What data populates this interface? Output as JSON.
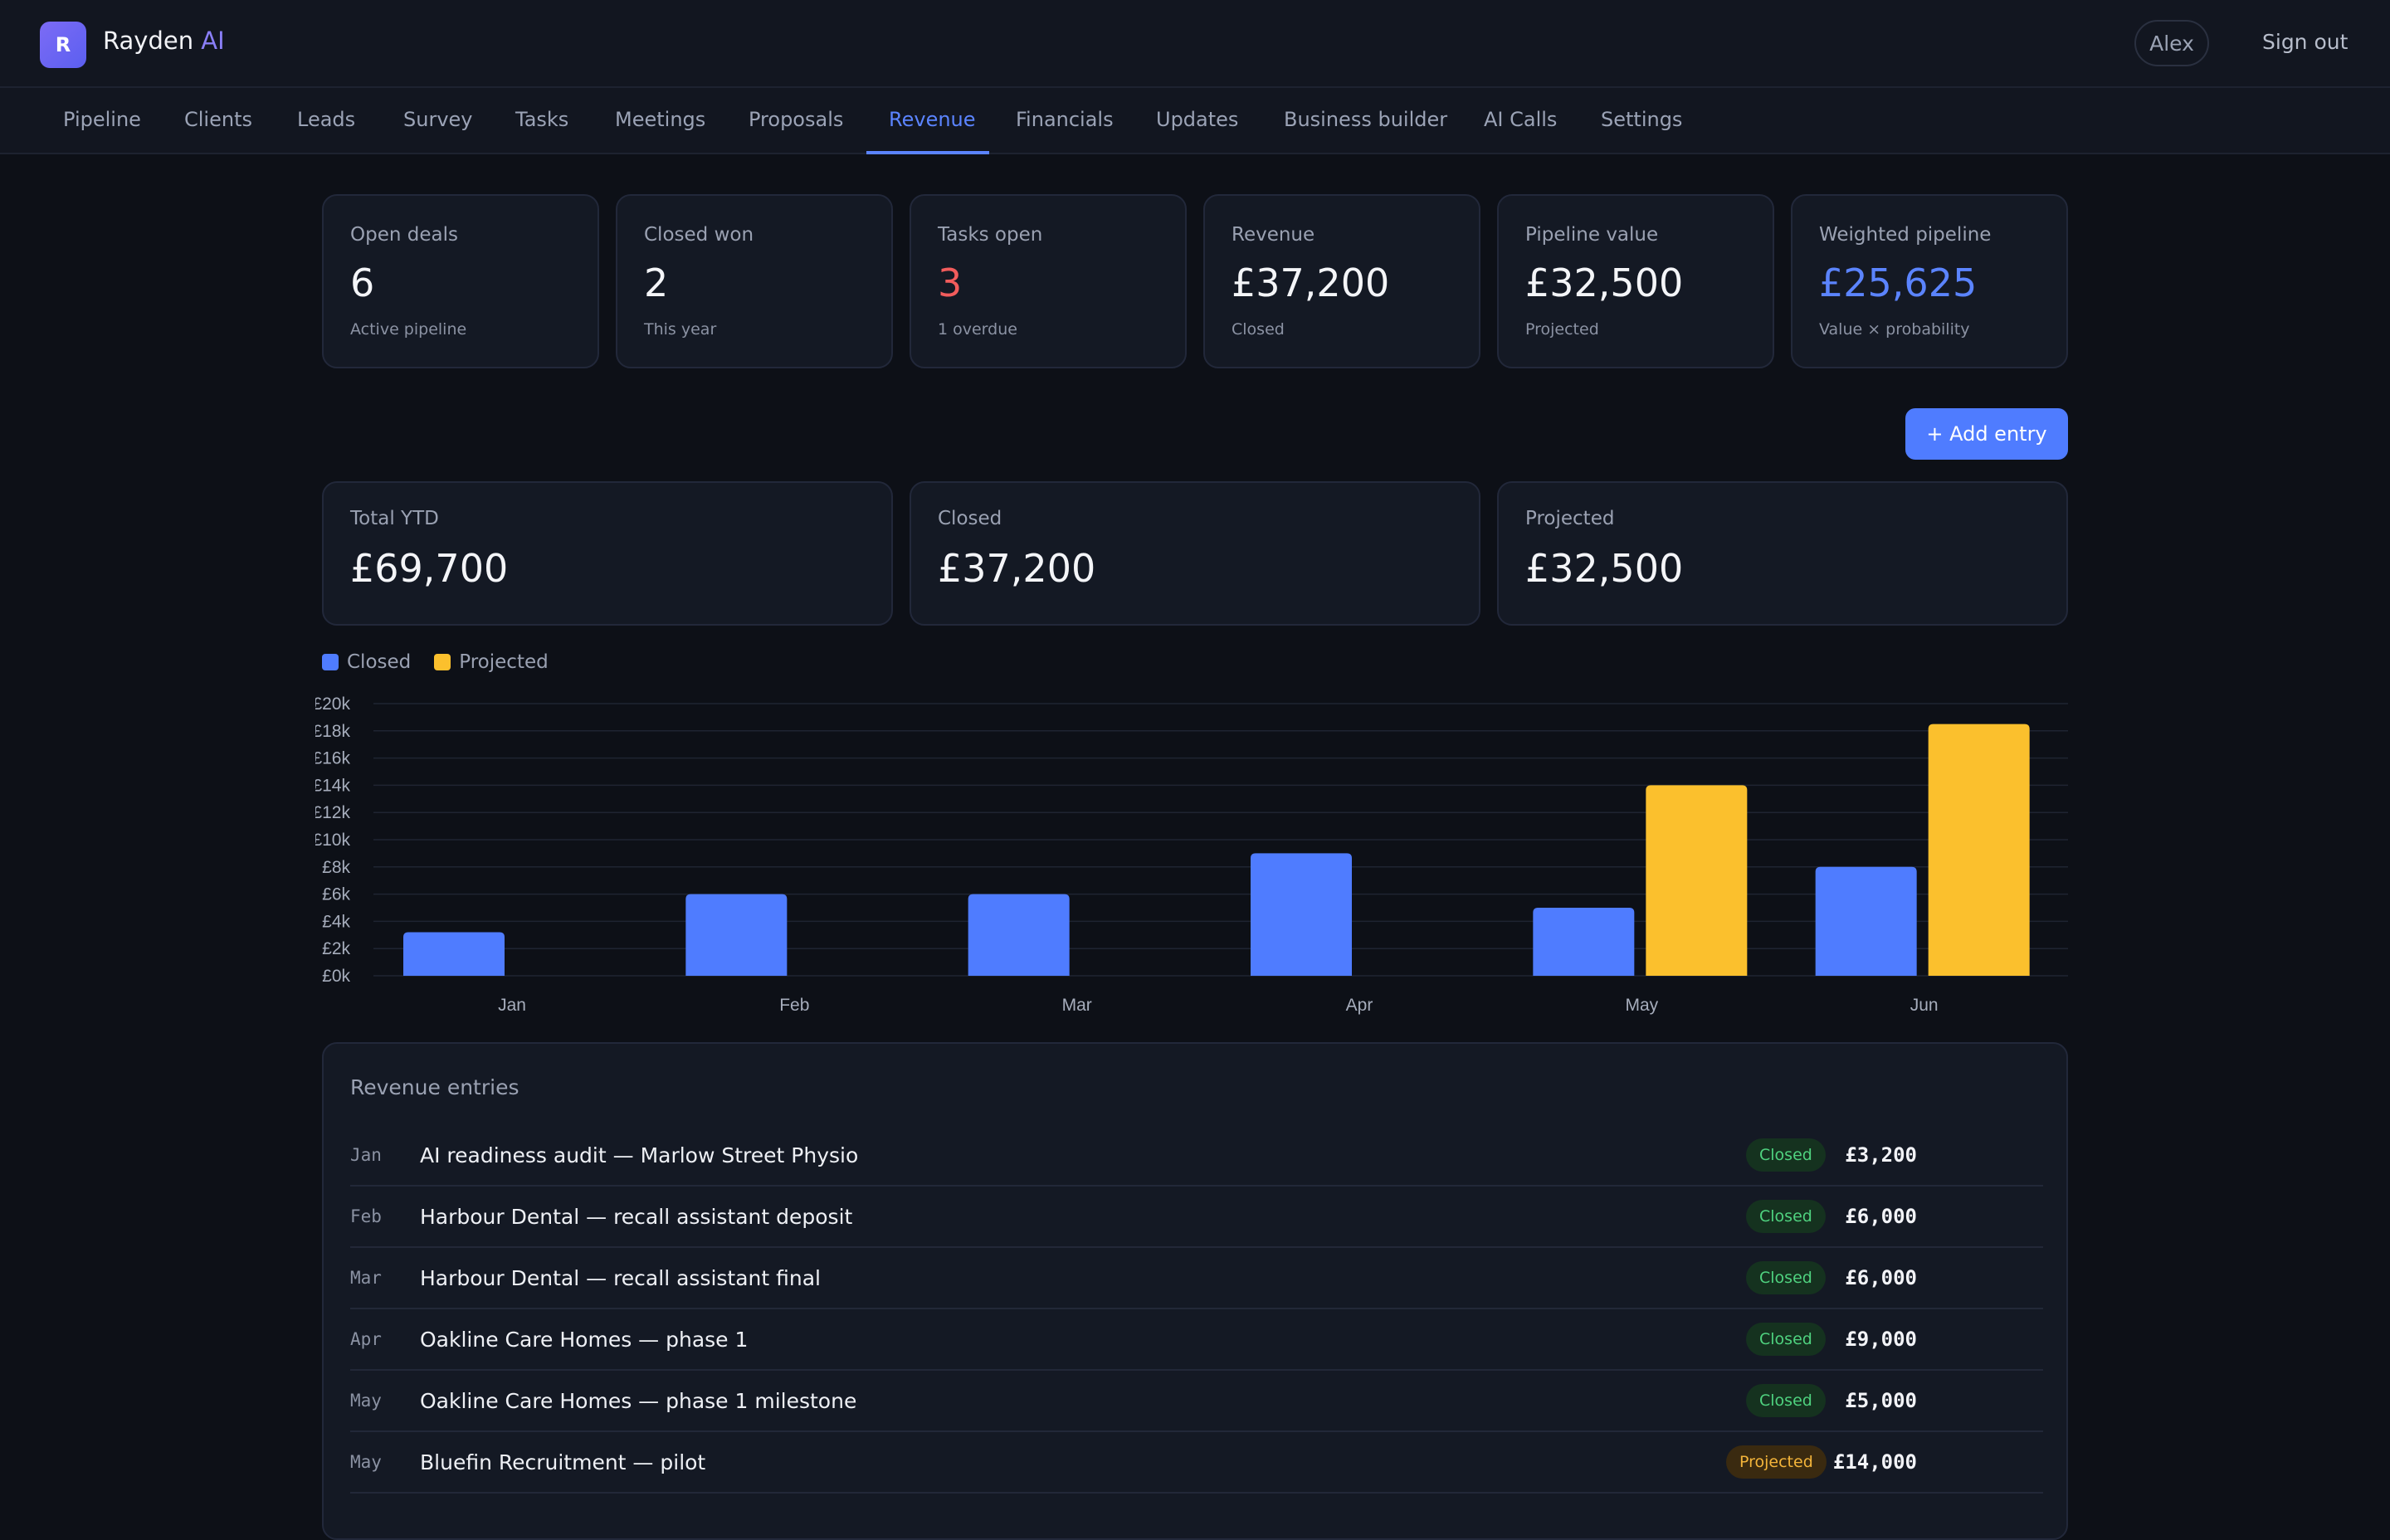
{
  "app": {
    "logo_letter": "R",
    "brand_name": "Rayden",
    "brand_accent": "AI"
  },
  "header": {
    "user": "Alex",
    "signout_label": "Sign out"
  },
  "nav": {
    "items": [
      {
        "label": "Pipeline"
      },
      {
        "label": "Clients"
      },
      {
        "label": "Leads"
      },
      {
        "label": "Survey"
      },
      {
        "label": "Tasks"
      },
      {
        "label": "Meetings"
      },
      {
        "label": "Proposals"
      },
      {
        "label": "Revenue"
      },
      {
        "label": "Financials"
      },
      {
        "label": "Updates"
      },
      {
        "label": "Business builder"
      },
      {
        "label": "AI Calls"
      },
      {
        "label": "Settings"
      }
    ],
    "active": "Revenue"
  },
  "stats": [
    {
      "label": "Open deals",
      "value": "6",
      "sub": "Active pipeline"
    },
    {
      "label": "Closed won",
      "value": "2",
      "sub": "This year"
    },
    {
      "label": "Tasks open",
      "value": "3",
      "sub": "1 overdue"
    },
    {
      "label": "Revenue",
      "value": "£37,200",
      "sub": "Closed"
    },
    {
      "label": "Pipeline value",
      "value": "£32,500",
      "sub": "Projected"
    },
    {
      "label": "Weighted pipeline",
      "value": "£25,625",
      "sub": "Value × probability"
    }
  ],
  "actions": {
    "add_entry_label": "+ Add entry"
  },
  "totals": [
    {
      "label": "Total YTD",
      "value": "£69,700"
    },
    {
      "label": "Closed",
      "value": "£37,200"
    },
    {
      "label": "Projected",
      "value": "£32,500"
    }
  ],
  "chart_data": {
    "type": "bar",
    "categories": [
      "Jan",
      "Feb",
      "Mar",
      "Apr",
      "May",
      "Jun"
    ],
    "series": [
      {
        "name": "Closed",
        "values": [
          3200,
          6000,
          6000,
          9000,
          5000,
          8000
        ],
        "color": "#4f7cff"
      },
      {
        "name": "Projected",
        "values": [
          0,
          0,
          0,
          0,
          14000,
          18500
        ],
        "color": "#fbc02d"
      }
    ],
    "y_ticks": [
      "£0k",
      "£2k",
      "£4k",
      "£6k",
      "£8k",
      "£10k",
      "£12k",
      "£14k",
      "£16k",
      "£18k",
      "£20k"
    ],
    "ylim": [
      0,
      20000
    ],
    "legend_position": "top-left",
    "grid": true
  },
  "entries": {
    "title": "Revenue entries",
    "rows": [
      {
        "month": "Jan",
        "desc": "AI readiness audit — Marlow Street Physio",
        "status": "Closed",
        "amount": "£3,200"
      },
      {
        "month": "Feb",
        "desc": "Harbour Dental — recall assistant deposit",
        "status": "Closed",
        "amount": "£6,000"
      },
      {
        "month": "Mar",
        "desc": "Harbour Dental — recall assistant final",
        "status": "Closed",
        "amount": "£6,000"
      },
      {
        "month": "Apr",
        "desc": "Oakline Care Homes — phase 1",
        "status": "Closed",
        "amount": "£9,000"
      },
      {
        "month": "May",
        "desc": "Oakline Care Homes — phase 1 milestone",
        "status": "Closed",
        "amount": "£5,000"
      },
      {
        "month": "May",
        "desc": "Bluefin Recruitment — pilot",
        "status": "Projected",
        "amount": "£14,000"
      }
    ]
  },
  "colors": {
    "accent": "#5b84ff",
    "closed": "#4f7cff",
    "projected": "#fbc02d",
    "danger": "#f25c5c"
  }
}
